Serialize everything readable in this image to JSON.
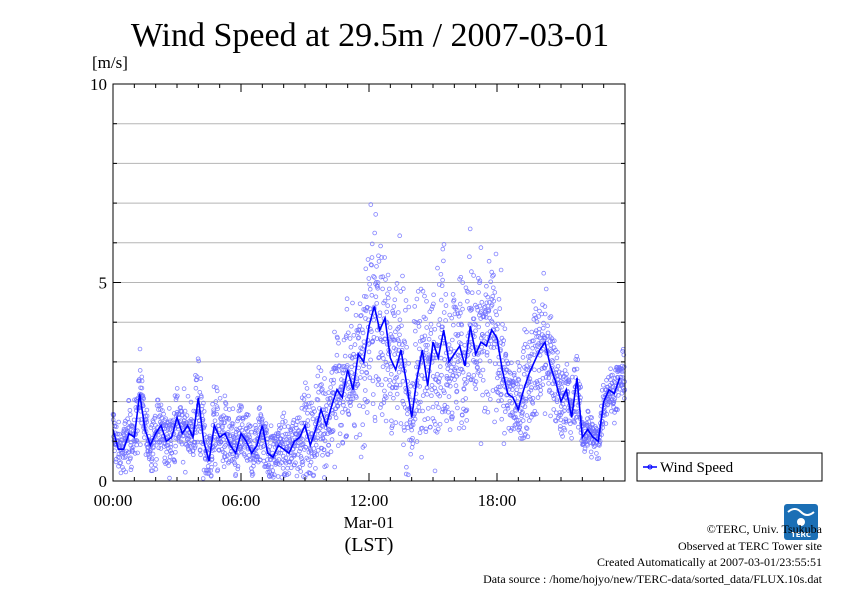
{
  "chart_data": {
    "type": "scatter",
    "title": "Wind Speed at 29.5m / 2007-03-01",
    "ylabel": "[m/s]",
    "xlabel_date": "Mar-01",
    "xlabel_zone": "(LST)",
    "ylim": [
      0,
      10
    ],
    "xlim_hours": [
      0,
      24
    ],
    "yticks": [
      0,
      5,
      10
    ],
    "ytick_labels": [
      "0",
      "5",
      "10"
    ],
    "xticks_hours": [
      0,
      6,
      12,
      18
    ],
    "xtick_labels": [
      "00:00",
      "06:00",
      "12:00",
      "18:00"
    ],
    "grid": true,
    "legend_position": "right",
    "series": [
      {
        "name": "Wind Speed",
        "color": "#0000ff",
        "x_hours": [
          0.0,
          0.25,
          0.5,
          0.75,
          1.0,
          1.25,
          1.5,
          1.75,
          2.0,
          2.25,
          2.5,
          2.75,
          3.0,
          3.25,
          3.5,
          3.75,
          4.0,
          4.25,
          4.5,
          4.75,
          5.0,
          5.25,
          5.5,
          5.75,
          6.0,
          6.25,
          6.5,
          6.75,
          7.0,
          7.25,
          7.5,
          7.75,
          8.0,
          8.25,
          8.5,
          8.75,
          9.0,
          9.25,
          9.5,
          9.75,
          10.0,
          10.25,
          10.5,
          10.75,
          11.0,
          11.25,
          11.5,
          11.75,
          12.0,
          12.25,
          12.5,
          12.75,
          13.0,
          13.25,
          13.5,
          13.75,
          14.0,
          14.25,
          14.5,
          14.75,
          15.0,
          15.25,
          15.5,
          15.75,
          16.0,
          16.25,
          16.5,
          16.75,
          17.0,
          17.25,
          17.5,
          17.75,
          18.0,
          18.25,
          18.5,
          18.75,
          19.0,
          19.25,
          19.5,
          19.75,
          20.0,
          20.25,
          20.5,
          20.75,
          21.0,
          21.25,
          21.5,
          21.75,
          22.0,
          22.25,
          22.5,
          22.75,
          23.0,
          23.25,
          23.5,
          23.75
        ],
        "y_mean": [
          1.3,
          0.8,
          0.8,
          1.2,
          1.1,
          2.2,
          1.3,
          0.9,
          1.2,
          1.4,
          1.0,
          1.1,
          1.6,
          1.2,
          1.4,
          1.1,
          2.1,
          1.0,
          0.5,
          1.4,
          1.1,
          1.2,
          0.9,
          0.7,
          1.2,
          1.0,
          0.7,
          0.9,
          1.4,
          0.7,
          0.6,
          0.9,
          0.8,
          0.7,
          1.0,
          1.1,
          1.4,
          0.9,
          1.3,
          1.8,
          1.4,
          1.9,
          2.3,
          2.1,
          2.8,
          2.3,
          3.2,
          3.0,
          3.9,
          4.4,
          3.8,
          4.1,
          3.1,
          2.8,
          3.3,
          2.5,
          1.6,
          2.6,
          3.3,
          2.4,
          3.5,
          3.1,
          3.8,
          3.0,
          3.2,
          3.4,
          2.9,
          3.9,
          3.2,
          3.5,
          3.4,
          3.8,
          3.6,
          2.8,
          2.2,
          2.1,
          1.8,
          2.3,
          2.7,
          3.0,
          3.3,
          3.5,
          2.9,
          2.5,
          2.0,
          2.3,
          1.6,
          2.6,
          1.1,
          1.3,
          1.1,
          1.0,
          2.0,
          2.3,
          2.2,
          2.6
        ],
        "y_spread": [
          0.5,
          0.4,
          0.4,
          0.5,
          0.5,
          0.8,
          0.5,
          0.4,
          0.5,
          0.5,
          0.5,
          0.5,
          0.6,
          0.5,
          0.6,
          0.6,
          0.9,
          0.7,
          0.6,
          0.7,
          0.6,
          0.6,
          0.6,
          0.5,
          0.6,
          0.6,
          0.5,
          0.5,
          0.6,
          0.5,
          0.5,
          0.5,
          0.5,
          0.5,
          0.6,
          0.6,
          0.7,
          0.6,
          0.7,
          0.9,
          0.8,
          0.9,
          1.0,
          1.0,
          1.2,
          1.1,
          1.3,
          1.4,
          1.6,
          1.8,
          1.7,
          1.7,
          1.4,
          1.3,
          1.4,
          1.2,
          1.0,
          1.3,
          1.4,
          1.2,
          1.4,
          1.3,
          1.5,
          1.3,
          1.3,
          1.4,
          1.2,
          1.5,
          1.3,
          1.3,
          1.3,
          1.3,
          1.2,
          1.0,
          0.8,
          0.8,
          0.7,
          0.8,
          0.9,
          1.0,
          1.2,
          1.2,
          1.0,
          0.8,
          0.6,
          0.7,
          0.5,
          0.6,
          0.3,
          0.4,
          0.3,
          0.3,
          0.4,
          0.4,
          0.4,
          0.4
        ]
      }
    ]
  },
  "footer": {
    "copyright": "©TERC, Univ. Tsukuba",
    "observed": "Observed at TERC Tower site",
    "created": "Created Automatically at 2007-03-01/23:55:51",
    "source": "Data source : /home/hojyo/new/TERC-data/sorted_data/FLUX.10s.dat"
  },
  "logo": {
    "text": "TERC",
    "color": "#1b6fb5"
  }
}
